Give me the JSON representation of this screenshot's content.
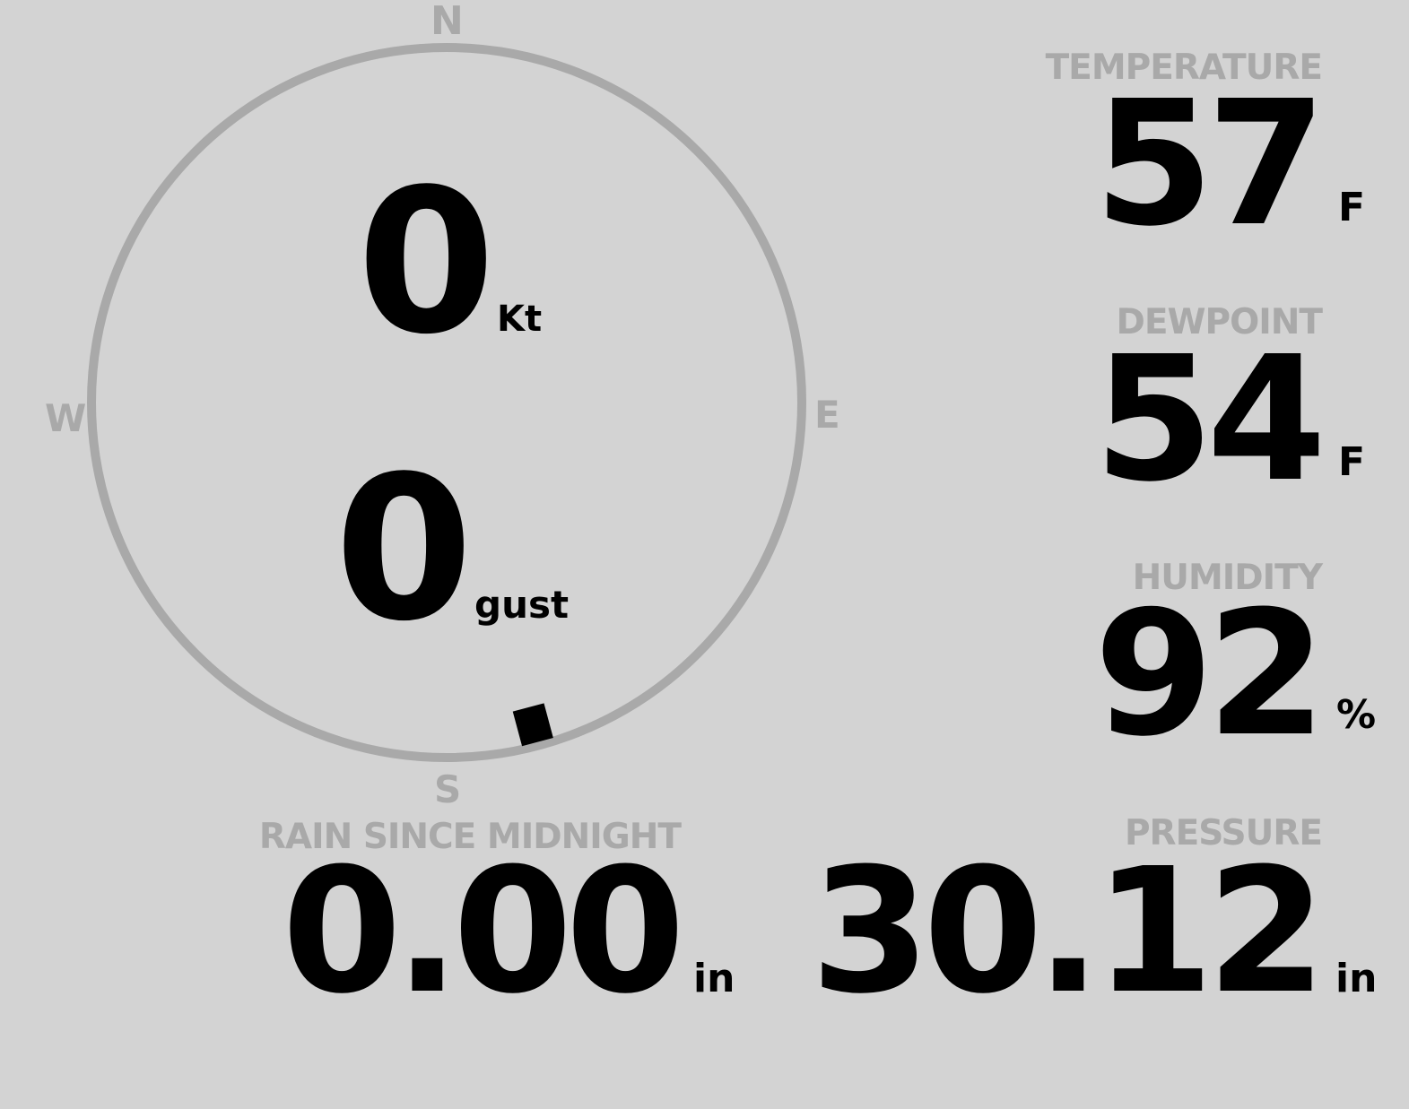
{
  "wind": {
    "speed": "0",
    "speed_unit": "Kt",
    "gust": "0",
    "gust_unit": "gust",
    "direction_deg": 165,
    "compass": {
      "n": "N",
      "e": "E",
      "s": "S",
      "w": "W"
    }
  },
  "temperature": {
    "label": "TEMPERATURE",
    "value": "57",
    "unit": "F"
  },
  "dewpoint": {
    "label": "DEWPOINT",
    "value": "54",
    "unit": "F"
  },
  "humidity": {
    "label": "HUMIDITY",
    "value": "92",
    "unit": "%"
  },
  "rain": {
    "label": "RAIN SINCE MIDNIGHT",
    "value": "0.00",
    "unit": "in"
  },
  "pressure": {
    "label": "PRESSURE",
    "value": "30.12",
    "unit": "in"
  },
  "colors": {
    "background": "#d3d3d3",
    "muted": "#a9a9a9",
    "value": "#000000"
  }
}
